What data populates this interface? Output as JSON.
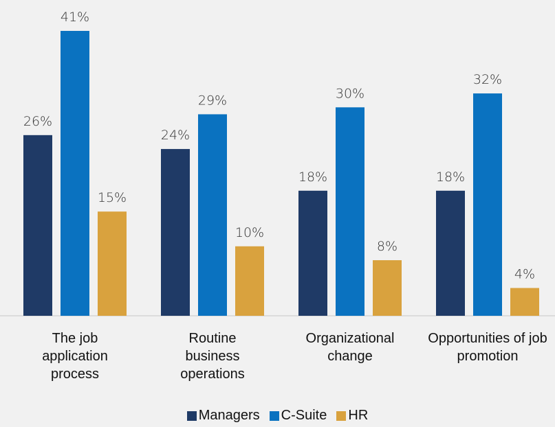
{
  "chart_data": {
    "type": "bar",
    "categories": [
      "The job application process",
      "Routine business operations",
      "Organizational change",
      "Opportunities of job promotion"
    ],
    "series": [
      {
        "name": "Managers",
        "color": "#1f3a66",
        "values": [
          26,
          24,
          18,
          18
        ],
        "value_labels": [
          "26%",
          "24%",
          "18%",
          "18%"
        ]
      },
      {
        "name": "C-Suite",
        "color": "#0a72c0",
        "values": [
          41,
          29,
          30,
          32
        ],
        "value_labels": [
          "41%",
          "29%",
          "30%",
          "32%"
        ]
      },
      {
        "name": "HR",
        "color": "#d9a23e",
        "values": [
          15,
          10,
          8,
          4
        ],
        "value_labels": [
          "15%",
          "10%",
          "8%",
          "4%"
        ]
      }
    ],
    "legend": "bottom"
  }
}
